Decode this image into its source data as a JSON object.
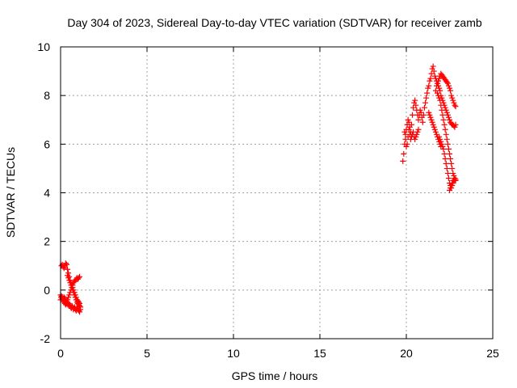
{
  "chart_data": {
    "type": "scatter",
    "title": "Day 304 of 2023, Sidereal Day-to-day VTEC variation (SDTVAR) for receiver zamb",
    "xlabel": "GPS time / hours",
    "ylabel": "SDTVAR / TECUs",
    "xlim": [
      0,
      25
    ],
    "ylim": [
      -2,
      10
    ],
    "xticks": [
      0,
      5,
      10,
      15,
      20,
      25
    ],
    "yticks": [
      -2,
      0,
      2,
      4,
      6,
      8,
      10
    ],
    "grid": true,
    "marker": "plus",
    "color": "#ff0000",
    "series": [
      {
        "name": "SDTVAR",
        "x": [
          0.0,
          0.03,
          0.06,
          0.1,
          0.14,
          0.18,
          0.22,
          0.26,
          0.3,
          0.34,
          0.38,
          0.42,
          0.46,
          0.5,
          0.54,
          0.58,
          0.62,
          0.66,
          0.7,
          0.74,
          0.78,
          0.82,
          0.86,
          0.9,
          0.94,
          0.98,
          1.02,
          1.06,
          1.1,
          1.14,
          0.05,
          0.1,
          0.15,
          0.2,
          0.25,
          0.3,
          0.35,
          0.4,
          0.45,
          0.5,
          0.55,
          0.6,
          0.65,
          0.7,
          0.75,
          0.8,
          0.85,
          0.9,
          0.95,
          1.0,
          1.05,
          1.1,
          0.0,
          0.05,
          0.1,
          0.15,
          0.2,
          0.25,
          0.3,
          0.35,
          0.4,
          0.45,
          0.5,
          0.55,
          0.6,
          0.65,
          0.7,
          0.75,
          0.8,
          0.85,
          0.9,
          0.95,
          1.0,
          1.05,
          1.1,
          0.4,
          0.45,
          0.5,
          0.55,
          0.6,
          0.65,
          0.7,
          0.75,
          0.8,
          0.85,
          0.9,
          0.95,
          1.0,
          1.05,
          1.1,
          1.15,
          19.8,
          19.85,
          19.9,
          19.95,
          20.0,
          20.05,
          20.1,
          20.15,
          20.2,
          20.25,
          20.3,
          20.35,
          20.4,
          20.45,
          20.5,
          20.55,
          20.6,
          20.65,
          20.7,
          20.75,
          20.8,
          20.85,
          20.9,
          20.95,
          21.0,
          21.05,
          21.1,
          21.15,
          21.2,
          21.25,
          21.3,
          21.35,
          21.4,
          21.45,
          21.5,
          21.55,
          21.6,
          21.65,
          21.7,
          21.75,
          21.8,
          21.85,
          21.9,
          21.95,
          22.0,
          22.05,
          22.1,
          22.15,
          22.2,
          22.25,
          22.3,
          22.35,
          22.4,
          22.45,
          22.5,
          22.55,
          22.6,
          22.65,
          22.7,
          22.75,
          22.8,
          22.85,
          21.8,
          21.85,
          21.9,
          21.95,
          22.0,
          22.05,
          22.1,
          22.15,
          22.2,
          22.25,
          22.3,
          22.35,
          22.4,
          22.45,
          22.5,
          22.55,
          22.6,
          22.65,
          22.7,
          22.75,
          22.8,
          22.85,
          21.9,
          21.95,
          22.0,
          22.05,
          22.1,
          22.15,
          22.2,
          22.25,
          22.3,
          22.35,
          22.4,
          22.45,
          22.5,
          22.55,
          22.6,
          22.65,
          22.7,
          22.75,
          22.8,
          21.7,
          21.75,
          21.8,
          21.85,
          21.9,
          21.95,
          22.0,
          22.05,
          22.1,
          22.15,
          22.2,
          22.25,
          22.3,
          22.35,
          22.4,
          22.45,
          22.5,
          22.55,
          22.6,
          22.65,
          22.7,
          22.75,
          22.8,
          22.85,
          19.9,
          19.95,
          20.0,
          20.05,
          20.1,
          20.15,
          20.2,
          20.25,
          20.3,
          20.35,
          20.4,
          20.45,
          20.5,
          20.55,
          20.6,
          20.65,
          20.7,
          21.3,
          21.35,
          21.4,
          21.45,
          21.5,
          21.55,
          21.6,
          21.65,
          21.7,
          21.75,
          21.8,
          21.85,
          21.9,
          21.95,
          22.0,
          22.5,
          22.55,
          22.6,
          22.65,
          22.7,
          22.75,
          22.8,
          22.85
        ],
        "y": [
          -0.4,
          -0.3,
          -0.25,
          -0.35,
          -0.45,
          -0.4,
          -0.3,
          -0.35,
          -0.45,
          -0.55,
          -0.5,
          -0.6,
          -0.55,
          -0.65,
          -0.6,
          -0.7,
          -0.75,
          -0.65,
          -0.7,
          -0.8,
          -0.75,
          -0.7,
          -0.8,
          -0.85,
          -0.75,
          -0.7,
          -0.8,
          -0.85,
          -0.9,
          -0.8,
          1.0,
          1.05,
          0.95,
          0.9,
          1.0,
          1.1,
          1.05,
          0.85,
          0.7,
          0.55,
          0.4,
          0.3,
          0.2,
          0.1,
          0.0,
          -0.1,
          -0.2,
          -0.3,
          -0.4,
          -0.45,
          -0.5,
          -0.55,
          -0.2,
          -0.3,
          -0.35,
          -0.4,
          -0.5,
          -0.55,
          -0.6,
          -0.5,
          -0.4,
          -0.3,
          -0.2,
          -0.1,
          0.0,
          0.1,
          0.2,
          0.3,
          0.35,
          0.4,
          0.45,
          0.5,
          0.45,
          0.5,
          0.55,
          0.6,
          0.5,
          0.4,
          0.3,
          0.2,
          0.1,
          0.0,
          -0.1,
          -0.2,
          -0.3,
          -0.4,
          -0.5,
          -0.55,
          -0.6,
          -0.65,
          -0.7,
          5.3,
          5.6,
          6.0,
          6.4,
          6.6,
          6.8,
          7.0,
          6.9,
          6.7,
          6.5,
          6.8,
          7.2,
          7.5,
          7.7,
          7.8,
          7.6,
          7.4,
          7.2,
          7.0,
          7.2,
          7.4,
          7.3,
          7.1,
          6.9,
          7.2,
          7.5,
          7.7,
          7.9,
          8.1,
          8.3,
          8.4,
          8.6,
          8.7,
          8.9,
          9.1,
          9.2,
          9.0,
          8.8,
          8.7,
          8.6,
          8.5,
          8.4,
          8.3,
          8.2,
          8.0,
          7.9,
          7.8,
          7.7,
          7.6,
          7.5,
          7.4,
          7.3,
          7.2,
          7.1,
          7.0,
          6.9,
          6.85,
          6.8,
          6.8,
          6.75,
          6.7,
          6.8,
          8.1,
          8.0,
          7.9,
          7.8,
          7.6,
          7.4,
          7.2,
          7.0,
          6.8,
          6.6,
          6.4,
          6.2,
          6.0,
          5.8,
          5.6,
          5.4,
          5.2,
          5.0,
          4.8,
          4.7,
          4.6,
          4.5,
          6.3,
          6.2,
          6.1,
          6.0,
          5.9,
          5.8,
          5.6,
          5.4,
          5.2,
          5.0,
          4.8,
          4.6,
          4.4,
          4.3,
          4.2,
          4.3,
          4.4,
          4.5,
          4.55,
          8.2,
          8.4,
          8.5,
          8.6,
          8.7,
          8.8,
          8.9,
          8.85,
          8.8,
          8.75,
          8.7,
          8.65,
          8.6,
          8.55,
          8.5,
          8.4,
          8.3,
          8.2,
          8.0,
          7.9,
          7.8,
          7.7,
          7.6,
          7.55,
          6.5,
          6.2,
          5.9,
          6.0,
          6.3,
          6.6,
          6.4,
          6.2,
          6.3,
          6.4,
          6.5,
          6.3,
          6.2,
          6.3,
          6.4,
          6.5,
          6.6,
          7.3,
          7.2,
          7.1,
          7.0,
          6.9,
          6.8,
          6.7,
          6.6,
          6.5,
          6.4,
          6.3,
          6.2,
          6.1,
          6.0,
          5.9,
          4.1,
          4.2,
          4.3,
          4.4,
          4.5,
          4.5,
          4.6,
          4.55
        ]
      }
    ]
  }
}
